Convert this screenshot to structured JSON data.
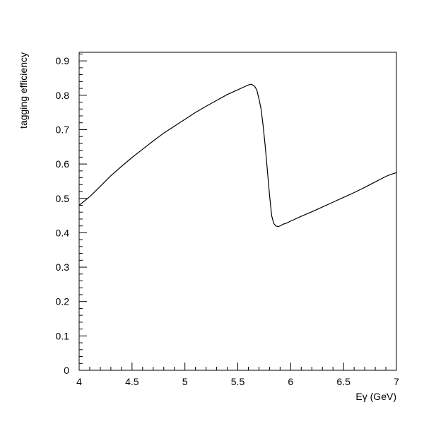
{
  "chart_data": {
    "type": "line",
    "title": "",
    "xlabel": "Eγ (GeV)",
    "ylabel": "tagging efficiency",
    "xlim": [
      4,
      7
    ],
    "ylim": [
      0,
      0.925
    ],
    "grid": false,
    "x_ticks": [
      "4",
      "4.5",
      "5",
      "5.5",
      "6",
      "6.5",
      "7"
    ],
    "y_ticks": [
      "0",
      "0.1",
      "0.2",
      "0.3",
      "0.4",
      "0.5",
      "0.6",
      "0.7",
      "0.8",
      "0.9"
    ],
    "series": [
      {
        "color": "#000000",
        "x": [
          4.0,
          4.1,
          4.2,
          4.3,
          4.4,
          4.5,
          4.6,
          4.7,
          4.8,
          4.9,
          5.0,
          5.1,
          5.2,
          5.3,
          5.4,
          5.5,
          5.55,
          5.6,
          5.63,
          5.66,
          5.68,
          5.7,
          5.72,
          5.74,
          5.76,
          5.78,
          5.8,
          5.82,
          5.84,
          5.86,
          5.88,
          5.9,
          5.93,
          5.96,
          6.0,
          6.1,
          6.2,
          6.3,
          6.4,
          6.5,
          6.6,
          6.7,
          6.8,
          6.9,
          6.95,
          7.0
        ],
        "y": [
          0.48,
          0.505,
          0.535,
          0.566,
          0.593,
          0.619,
          0.643,
          0.667,
          0.69,
          0.71,
          0.73,
          0.75,
          0.768,
          0.785,
          0.802,
          0.816,
          0.823,
          0.83,
          0.832,
          0.826,
          0.815,
          0.79,
          0.76,
          0.71,
          0.65,
          0.58,
          0.51,
          0.45,
          0.427,
          0.42,
          0.418,
          0.42,
          0.425,
          0.428,
          0.434,
          0.448,
          0.461,
          0.475,
          0.489,
          0.503,
          0.517,
          0.532,
          0.548,
          0.564,
          0.57,
          0.575
        ]
      }
    ]
  }
}
